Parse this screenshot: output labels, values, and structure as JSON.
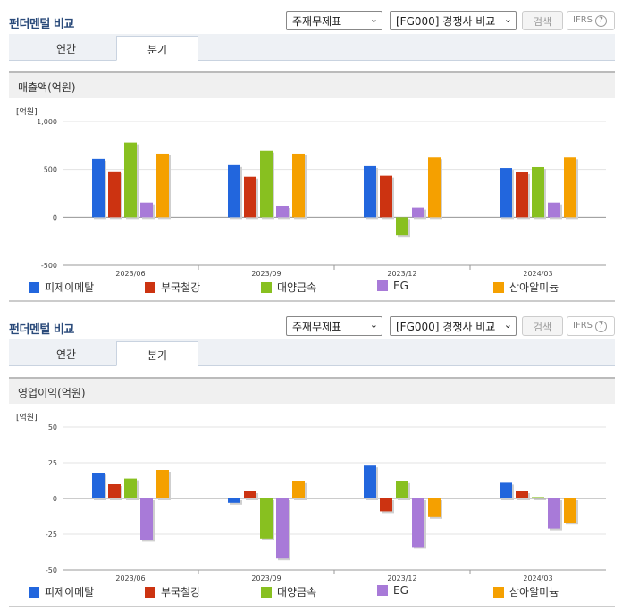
{
  "panels": [
    {
      "title": "펀더멘털 비교",
      "select_statement": "주재무제표",
      "select_compare": "[FG000] 경쟁사 비교",
      "search_label": "검색",
      "ifrs_label": "IFRS",
      "ifrs_help": "?",
      "tabs": [
        "연간",
        "분기"
      ],
      "active_tab": "분기",
      "band_label": "매출액(억원)"
    },
    {
      "title": "펀더멘털 비교",
      "select_statement": "주재무제표",
      "select_compare": "[FG000] 경쟁사 비교",
      "search_label": "검색",
      "ifrs_label": "IFRS",
      "ifrs_help": "?",
      "tabs": [
        "연간",
        "분기"
      ],
      "active_tab": "분기",
      "band_label": "영업이익(억원)"
    }
  ],
  "chart_data": [
    {
      "type": "bar",
      "unit_label": "[억원]",
      "categories": [
        "2023/06",
        "2023/09",
        "2023/12",
        "2024/03"
      ],
      "ylim": [
        -500,
        1000
      ],
      "yticks": [
        -500,
        0,
        500,
        1000
      ],
      "ytick_labels": [
        "-500",
        "0",
        "500",
        "1,000"
      ],
      "grid": true,
      "legend_position": "bottom",
      "series": [
        {
          "name": "피제이메탈",
          "color": "#2266dd",
          "values": [
            610,
            545,
            535,
            515
          ]
        },
        {
          "name": "부국철강",
          "color": "#cc3311",
          "values": [
            480,
            425,
            435,
            470
          ]
        },
        {
          "name": "대양금속",
          "color": "#88c020",
          "values": [
            780,
            695,
            -185,
            525
          ]
        },
        {
          "name": "EG",
          "color": "#a87ad8",
          "values": [
            155,
            115,
            100,
            155
          ]
        },
        {
          "name": "삼아알미늄",
          "color": "#f5a000",
          "values": [
            665,
            665,
            625,
            625
          ]
        }
      ]
    },
    {
      "type": "bar",
      "unit_label": "[억원]",
      "categories": [
        "2023/06",
        "2023/09",
        "2023/12",
        "2024/03"
      ],
      "ylim": [
        -50,
        50
      ],
      "yticks": [
        -50,
        -25,
        0,
        25,
        50
      ],
      "ytick_labels": [
        "-50",
        "-25",
        "0",
        "25",
        "50"
      ],
      "grid": true,
      "legend_position": "bottom",
      "series": [
        {
          "name": "피제이메탈",
          "color": "#2266dd",
          "values": [
            18,
            -3,
            23,
            11
          ]
        },
        {
          "name": "부국철강",
          "color": "#cc3311",
          "values": [
            10,
            5,
            -9,
            5
          ]
        },
        {
          "name": "대양금속",
          "color": "#88c020",
          "values": [
            14,
            -28,
            12,
            1
          ]
        },
        {
          "name": "EG",
          "color": "#a87ad8",
          "values": [
            -29,
            -42,
            -34,
            -21
          ]
        },
        {
          "name": "삼아알미늄",
          "color": "#f5a000",
          "values": [
            20,
            12,
            -13,
            -17
          ]
        }
      ]
    }
  ]
}
